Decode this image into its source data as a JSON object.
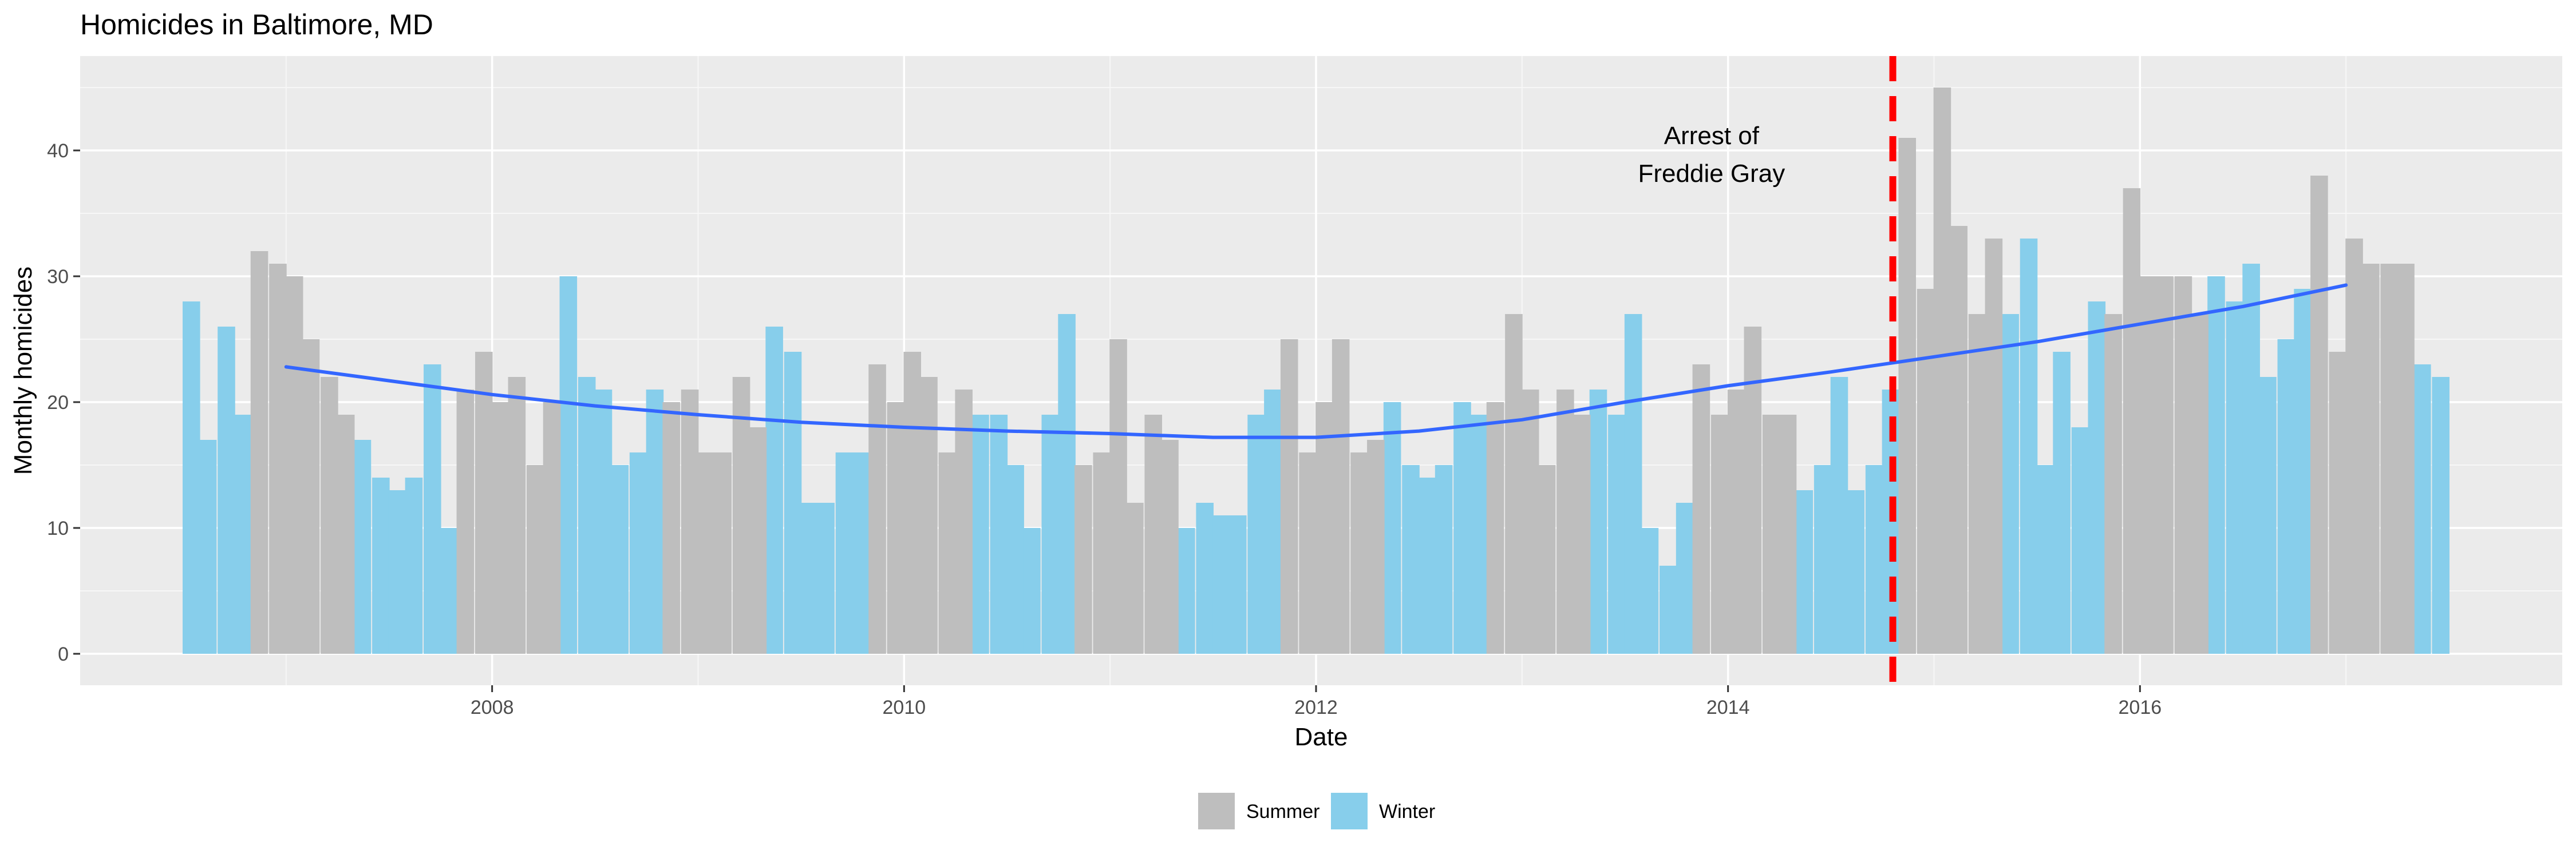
{
  "chart_data": {
    "type": "bar",
    "title": "Homicides in Baltimore, MD",
    "xlabel": "Date",
    "ylabel": "Monthly homicides",
    "xlim": [
      2006.0,
      2018.05
    ],
    "ylim": [
      -2.5,
      47.5
    ],
    "x_ticks": [
      2008,
      2010,
      2012,
      2014,
      2016
    ],
    "y_ticks": [
      0,
      10,
      20,
      30,
      40
    ],
    "grid": true,
    "legend_position": "bottom",
    "colors": {
      "Summer": "#bebebe",
      "Winter": "#87ceeb",
      "trend": "#3366ff",
      "event": "#ff0000"
    },
    "series": [
      {
        "name": "Winter",
        "points": [
          {
            "x": 2006.54,
            "y": 28
          },
          {
            "x": 2006.62,
            "y": 17
          },
          {
            "x": 2006.71,
            "y": 26
          },
          {
            "x": 2006.79,
            "y": 19
          },
          {
            "x": 2007.37,
            "y": 17
          },
          {
            "x": 2007.46,
            "y": 14
          },
          {
            "x": 2007.54,
            "y": 13
          },
          {
            "x": 2007.62,
            "y": 14
          },
          {
            "x": 2007.71,
            "y": 23
          },
          {
            "x": 2007.79,
            "y": 10
          },
          {
            "x": 2008.37,
            "y": 30
          },
          {
            "x": 2008.46,
            "y": 22
          },
          {
            "x": 2008.54,
            "y": 21
          },
          {
            "x": 2008.62,
            "y": 15
          },
          {
            "x": 2008.71,
            "y": 16
          },
          {
            "x": 2008.79,
            "y": 21
          },
          {
            "x": 2009.37,
            "y": 26
          },
          {
            "x": 2009.46,
            "y": 24
          },
          {
            "x": 2009.54,
            "y": 12
          },
          {
            "x": 2009.62,
            "y": 12
          },
          {
            "x": 2009.71,
            "y": 16
          },
          {
            "x": 2009.79,
            "y": 16
          },
          {
            "x": 2010.37,
            "y": 19
          },
          {
            "x": 2010.46,
            "y": 19
          },
          {
            "x": 2010.54,
            "y": 15
          },
          {
            "x": 2010.62,
            "y": 10
          },
          {
            "x": 2010.71,
            "y": 19
          },
          {
            "x": 2010.79,
            "y": 27
          },
          {
            "x": 2011.37,
            "y": 10
          },
          {
            "x": 2011.46,
            "y": 12
          },
          {
            "x": 2011.54,
            "y": 11
          },
          {
            "x": 2011.62,
            "y": 11
          },
          {
            "x": 2011.71,
            "y": 19
          },
          {
            "x": 2011.79,
            "y": 21
          },
          {
            "x": 2012.37,
            "y": 20
          },
          {
            "x": 2012.46,
            "y": 15
          },
          {
            "x": 2012.54,
            "y": 14
          },
          {
            "x": 2012.62,
            "y": 15
          },
          {
            "x": 2012.71,
            "y": 20
          },
          {
            "x": 2012.79,
            "y": 19
          },
          {
            "x": 2013.37,
            "y": 21
          },
          {
            "x": 2013.46,
            "y": 19
          },
          {
            "x": 2013.54,
            "y": 27
          },
          {
            "x": 2013.62,
            "y": 10
          },
          {
            "x": 2013.71,
            "y": 7
          },
          {
            "x": 2013.79,
            "y": 12
          },
          {
            "x": 2014.37,
            "y": 13
          },
          {
            "x": 2014.46,
            "y": 15
          },
          {
            "x": 2014.54,
            "y": 22
          },
          {
            "x": 2014.62,
            "y": 13
          },
          {
            "x": 2014.71,
            "y": 15
          },
          {
            "x": 2014.79,
            "y": 21
          },
          {
            "x": 2015.37,
            "y": 27
          },
          {
            "x": 2015.46,
            "y": 33
          },
          {
            "x": 2015.54,
            "y": 15
          },
          {
            "x": 2015.62,
            "y": 24
          },
          {
            "x": 2015.71,
            "y": 18
          },
          {
            "x": 2015.79,
            "y": 28
          },
          {
            "x": 2016.37,
            "y": 30
          },
          {
            "x": 2016.46,
            "y": 28
          },
          {
            "x": 2016.54,
            "y": 31
          },
          {
            "x": 2016.62,
            "y": 22
          },
          {
            "x": 2016.71,
            "y": 25
          },
          {
            "x": 2016.79,
            "y": 29
          },
          {
            "x": 2017.37,
            "y": 23
          },
          {
            "x": 2017.46,
            "y": 22
          }
        ]
      },
      {
        "name": "Summer",
        "points": [
          {
            "x": 2006.87,
            "y": 32
          },
          {
            "x": 2006.96,
            "y": 31
          },
          {
            "x": 2007.04,
            "y": 30
          },
          {
            "x": 2007.12,
            "y": 25
          },
          {
            "x": 2007.21,
            "y": 22
          },
          {
            "x": 2007.29,
            "y": 19
          },
          {
            "x": 2007.87,
            "y": 21
          },
          {
            "x": 2007.96,
            "y": 24
          },
          {
            "x": 2008.04,
            "y": 20
          },
          {
            "x": 2008.12,
            "y": 22
          },
          {
            "x": 2008.21,
            "y": 15
          },
          {
            "x": 2008.29,
            "y": 20
          },
          {
            "x": 2008.87,
            "y": 20
          },
          {
            "x": 2008.96,
            "y": 21
          },
          {
            "x": 2009.04,
            "y": 16
          },
          {
            "x": 2009.12,
            "y": 16
          },
          {
            "x": 2009.21,
            "y": 22
          },
          {
            "x": 2009.29,
            "y": 18
          },
          {
            "x": 2009.87,
            "y": 23
          },
          {
            "x": 2009.96,
            "y": 20
          },
          {
            "x": 2010.04,
            "y": 24
          },
          {
            "x": 2010.12,
            "y": 22
          },
          {
            "x": 2010.21,
            "y": 16
          },
          {
            "x": 2010.29,
            "y": 21
          },
          {
            "x": 2010.87,
            "y": 15
          },
          {
            "x": 2010.96,
            "y": 16
          },
          {
            "x": 2011.04,
            "y": 25
          },
          {
            "x": 2011.12,
            "y": 12
          },
          {
            "x": 2011.21,
            "y": 19
          },
          {
            "x": 2011.29,
            "y": 17
          },
          {
            "x": 2011.87,
            "y": 25
          },
          {
            "x": 2011.96,
            "y": 16
          },
          {
            "x": 2012.04,
            "y": 20
          },
          {
            "x": 2012.12,
            "y": 25
          },
          {
            "x": 2012.21,
            "y": 16
          },
          {
            "x": 2012.29,
            "y": 17
          },
          {
            "x": 2012.87,
            "y": 20
          },
          {
            "x": 2012.96,
            "y": 27
          },
          {
            "x": 2013.04,
            "y": 21
          },
          {
            "x": 2013.12,
            "y": 15
          },
          {
            "x": 2013.21,
            "y": 21
          },
          {
            "x": 2013.29,
            "y": 19
          },
          {
            "x": 2013.87,
            "y": 23
          },
          {
            "x": 2013.96,
            "y": 19
          },
          {
            "x": 2014.04,
            "y": 21
          },
          {
            "x": 2014.12,
            "y": 26
          },
          {
            "x": 2014.21,
            "y": 19
          },
          {
            "x": 2014.29,
            "y": 19
          },
          {
            "x": 2014.87,
            "y": 41
          },
          {
            "x": 2014.96,
            "y": 29
          },
          {
            "x": 2015.04,
            "y": 45
          },
          {
            "x": 2015.12,
            "y": 34
          },
          {
            "x": 2015.21,
            "y": 27
          },
          {
            "x": 2015.29,
            "y": 33
          },
          {
            "x": 2015.87,
            "y": 27
          },
          {
            "x": 2015.96,
            "y": 37
          },
          {
            "x": 2016.04,
            "y": 30
          },
          {
            "x": 2016.12,
            "y": 30
          },
          {
            "x": 2016.21,
            "y": 30
          },
          {
            "x": 2016.29,
            "y": 27
          },
          {
            "x": 2016.87,
            "y": 38
          },
          {
            "x": 2016.96,
            "y": 24
          },
          {
            "x": 2017.04,
            "y": 33
          },
          {
            "x": 2017.12,
            "y": 31
          },
          {
            "x": 2017.21,
            "y": 31
          },
          {
            "x": 2017.29,
            "y": 31
          }
        ]
      }
    ],
    "trend_line": {
      "x": [
        2007.0,
        2007.5,
        2008.0,
        2008.5,
        2009.0,
        2009.5,
        2010.0,
        2010.5,
        2011.0,
        2011.5,
        2012.0,
        2012.5,
        2013.0,
        2013.5,
        2014.0,
        2014.5,
        2015.0,
        2015.5,
        2016.0,
        2016.5,
        2017.0
      ],
      "y": [
        22.8,
        21.7,
        20.6,
        19.7,
        19.0,
        18.4,
        18.0,
        17.7,
        17.5,
        17.2,
        17.2,
        17.7,
        18.6,
        20.0,
        21.3,
        22.4,
        23.6,
        24.8,
        26.2,
        27.6,
        29.3
      ]
    },
    "annotations": [
      {
        "type": "vline",
        "x": 2014.8
      },
      {
        "type": "text",
        "x": 2013.92,
        "y": 40.5,
        "lines": [
          "Arrest of",
          "Freddie Gray"
        ]
      }
    ],
    "legend_entries": [
      "Summer",
      "Winter"
    ]
  }
}
